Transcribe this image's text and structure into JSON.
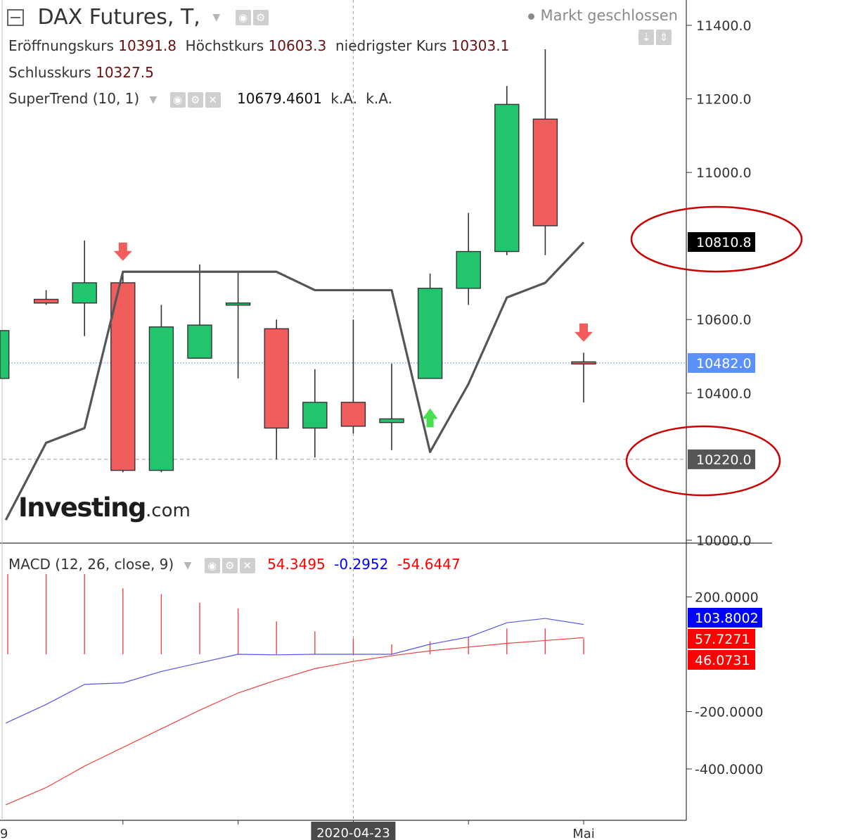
{
  "header": {
    "symbol": "DAX Futures, T,",
    "market_status": "Markt geschlossen",
    "ohlc": [
      {
        "label": "Eröffnungskurs",
        "value": "10391.8"
      },
      {
        "label": "Höchstkurs",
        "value": "10603.3"
      },
      {
        "label": "niedrigster Kurs",
        "value": "10303.1"
      }
    ],
    "close": {
      "label": "Schlusskurs",
      "value": "10327.5"
    },
    "indicator": {
      "name": "SuperTrend (10, 1)",
      "value": "10679.4601",
      "extra1": "k.A.",
      "extra2": "k.A."
    }
  },
  "watermark": {
    "brand": "Investing",
    "suffix": ".com"
  },
  "macd_legend": {
    "name": "MACD (12, 26, close, 9)",
    "v1": "54.3495",
    "v2": "-0.2952",
    "v3": "-54.6447"
  },
  "chart_data": [
    {
      "type": "candlestick",
      "title": "DAX Futures, T,",
      "ylim": [
        10000,
        11400
      ],
      "yticks": [
        "11400.0",
        "11200.0",
        "11000.0",
        "10600.0",
        "10400.0",
        "10000.0"
      ],
      "yticks_values": [
        11400,
        11200,
        11000,
        10600,
        10400,
        10000
      ],
      "xticks": [
        {
          "index": 9,
          "label": "2020-04-23"
        },
        {
          "index": 15,
          "label": "Mai"
        }
      ],
      "left_edge_label": "9",
      "candles": [
        {
          "i": 0,
          "open": 10440,
          "close": 10570,
          "high": 10570,
          "low": 10440,
          "partial": true
        },
        {
          "i": 1,
          "open": 10655,
          "close": 10645,
          "high": 10680,
          "low": 10640
        },
        {
          "i": 2,
          "open": 10645,
          "close": 10700,
          "high": 10815,
          "low": 10555
        },
        {
          "i": 3,
          "open": 10700,
          "close": 10190,
          "high": 10730,
          "low": 10185
        },
        {
          "i": 4,
          "open": 10190,
          "close": 10580,
          "high": 10640,
          "low": 10185
        },
        {
          "i": 5,
          "open": 10495,
          "close": 10585,
          "high": 10750,
          "low": 10495
        },
        {
          "i": 6,
          "open": 10645,
          "close": 10645,
          "high": 10730,
          "low": 10440
        },
        {
          "i": 7,
          "open": 10575,
          "close": 10305,
          "high": 10600,
          "low": 10220
        },
        {
          "i": 8,
          "open": 10305,
          "close": 10375,
          "high": 10465,
          "low": 10225
        },
        {
          "i": 9,
          "open": 10375,
          "close": 10310,
          "high": 10600,
          "low": 10290
        },
        {
          "i": 10,
          "open": 10320,
          "close": 10330,
          "high": 10480,
          "low": 10245
        },
        {
          "i": 11,
          "open": 10440,
          "close": 10685,
          "high": 10725,
          "low": 10440
        },
        {
          "i": 12,
          "open": 10685,
          "close": 10785,
          "high": 10890,
          "low": 10640
        },
        {
          "i": 13,
          "open": 10785,
          "close": 11185,
          "high": 11235,
          "low": 10775
        },
        {
          "i": 14,
          "open": 11145,
          "close": 10855,
          "high": 11335,
          "low": 10775
        },
        {
          "i": 15,
          "open": 10485,
          "close": 10480,
          "high": 10510,
          "low": 10375
        }
      ],
      "supertrend": [
        {
          "i": -0.05,
          "v": 10055
        },
        {
          "i": 1,
          "v": 10265
        },
        {
          "i": 2,
          "v": 10305
        },
        {
          "i": 3,
          "v": 10730
        },
        {
          "i": 4,
          "v": 10730
        },
        {
          "i": 5,
          "v": 10730
        },
        {
          "i": 6,
          "v": 10730
        },
        {
          "i": 7,
          "v": 10730
        },
        {
          "i": 8,
          "v": 10680
        },
        {
          "i": 9,
          "v": 10680
        },
        {
          "i": 10,
          "v": 10680
        },
        {
          "i": 11,
          "v": 10240
        },
        {
          "i": 12,
          "v": 10425
        },
        {
          "i": 13,
          "v": 10660
        },
        {
          "i": 14,
          "v": 10700
        },
        {
          "i": 15,
          "v": 10810
        }
      ],
      "signals": [
        {
          "i": 3,
          "type": "sell",
          "v": 10775
        },
        {
          "i": 11,
          "type": "buy",
          "v": 10330
        },
        {
          "i": 15,
          "type": "sell",
          "v": 10555
        }
      ],
      "price_lines": [
        {
          "value": 10482,
          "label": "10482.0",
          "style": "dotted-blue"
        },
        {
          "value": 10220,
          "label": "10220.0",
          "style": "dashed-gray"
        }
      ],
      "price_tags": [
        {
          "value": 10810.8,
          "label": "10810.8",
          "color": "#000000"
        },
        {
          "value": 10482,
          "label": "10482.0",
          "color": "#5b8ff9"
        },
        {
          "value": 10220,
          "label": "10220.0",
          "color": "#555555"
        }
      ],
      "annotations": [
        {
          "shape": "ellipse",
          "color": "#cc0000",
          "around": "10810.8"
        },
        {
          "shape": "ellipse",
          "color": "#cc0000",
          "around": "10220.0"
        }
      ]
    },
    {
      "type": "line",
      "title": "MACD (12, 26, close, 9)",
      "ylim": [
        -560,
        330
      ],
      "yticks": [
        "200.0000",
        "-200.0000",
        "-400.0000"
      ],
      "yticks_values": [
        200,
        -200,
        -400
      ],
      "histogram_top": 280,
      "histogram": [
        {
          "i": 0,
          "v": 280
        },
        {
          "i": 1,
          "v": 280
        },
        {
          "i": 2,
          "v": 280
        },
        {
          "i": 3,
          "v": 230
        },
        {
          "i": 4,
          "v": 210
        },
        {
          "i": 5,
          "v": 180
        },
        {
          "i": 6,
          "v": 160
        },
        {
          "i": 7,
          "v": 115
        },
        {
          "i": 8,
          "v": 80
        },
        {
          "i": 9,
          "v": 55
        },
        {
          "i": 10,
          "v": 35
        },
        {
          "i": 11,
          "v": 45
        },
        {
          "i": 12,
          "v": 60
        },
        {
          "i": 13,
          "v": 90
        },
        {
          "i": 14,
          "v": 90
        },
        {
          "i": 15,
          "v": 55
        }
      ],
      "histogram_baseline": 0,
      "macd_line": [
        {
          "i": -0.05,
          "v": -240
        },
        {
          "i": 1,
          "v": -175
        },
        {
          "i": 2,
          "v": -105
        },
        {
          "i": 3,
          "v": -100
        },
        {
          "i": 4,
          "v": -60
        },
        {
          "i": 5,
          "v": -30
        },
        {
          "i": 6,
          "v": 0
        },
        {
          "i": 7,
          "v": -2
        },
        {
          "i": 8,
          "v": 0
        },
        {
          "i": 9,
          "v": 0
        },
        {
          "i": 10,
          "v": 0
        },
        {
          "i": 11,
          "v": 35
        },
        {
          "i": 12,
          "v": 60
        },
        {
          "i": 13,
          "v": 110
        },
        {
          "i": 14,
          "v": 125
        },
        {
          "i": 15,
          "v": 104
        }
      ],
      "signal_line": [
        {
          "i": -0.05,
          "v": -525
        },
        {
          "i": 1,
          "v": -465
        },
        {
          "i": 2,
          "v": -390
        },
        {
          "i": 3,
          "v": -325
        },
        {
          "i": 4,
          "v": -260
        },
        {
          "i": 5,
          "v": -195
        },
        {
          "i": 6,
          "v": -135
        },
        {
          "i": 7,
          "v": -90
        },
        {
          "i": 8,
          "v": -50
        },
        {
          "i": 9,
          "v": -25
        },
        {
          "i": 10,
          "v": -5
        },
        {
          "i": 11,
          "v": 12
        },
        {
          "i": 12,
          "v": 25
        },
        {
          "i": 13,
          "v": 38
        },
        {
          "i": 14,
          "v": 48
        },
        {
          "i": 15,
          "v": 58
        }
      ],
      "price_tags": [
        {
          "value": 103.8002,
          "label": "103.8002",
          "color": "#0000ff"
        },
        {
          "value": 57.7271,
          "label": "57.7271",
          "color": "#ff0000"
        },
        {
          "value": 46.0731,
          "label": "46.0731",
          "color": "#ff0000"
        }
      ]
    }
  ],
  "colors": {
    "up": "#22c46e",
    "down": "#f15c5c",
    "supertrend": "#555555",
    "macd": "#5555ee",
    "signal": "#ee4444",
    "histogram": "#ee4444",
    "annotation": "#cc0000"
  }
}
